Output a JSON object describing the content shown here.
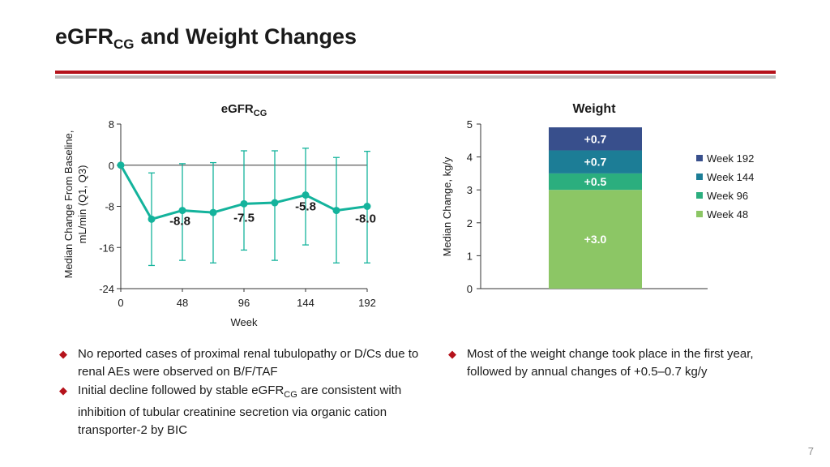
{
  "slide": {
    "title_main": "eGFR",
    "title_sub": "CG",
    "title_rest": "and Weight Changes",
    "page_number": "7"
  },
  "egfr_chart": {
    "title_main": "eGFR",
    "title_sub": "CG",
    "ylabel_line1": "Median Change From Baseline,",
    "ylabel_line2": "mL/min (Q1, Q3)",
    "xlabel": "Week"
  },
  "weight_chart": {
    "title": "Weight",
    "ylabel": "Median Change, kg/y"
  },
  "bullets_left": [
    {
      "text": "No reported cases of proximal renal tubulopathy or D/Cs due to renal AEs were observed on B/F/TAF"
    },
    {
      "pre": "Initial decline followed by stable eGFR",
      "sub": "CG",
      "post": " are consistent with inhibition of tubular creatinine secretion via organic cation transporter-2 by BIC"
    }
  ],
  "bullets_right": [
    {
      "text": "Most of the weight change took place in the first year, followed by annual changes of +0.5–0.7 kg/y"
    }
  ],
  "chart_data": [
    {
      "type": "line",
      "title": "eGFRCG",
      "xlabel": "Week",
      "ylabel": "Median Change From Baseline, mL/min (Q1, Q3)",
      "xlim": [
        0,
        192
      ],
      "ylim": [
        -24,
        8
      ],
      "xticks": [
        0,
        48,
        96,
        144,
        192
      ],
      "yticks": [
        8,
        0,
        -8,
        -16,
        -24
      ],
      "color": "#14b39c",
      "x": [
        0,
        24,
        48,
        72,
        96,
        120,
        144,
        168,
        192
      ],
      "y": [
        0,
        -10.5,
        -8.8,
        -9.2,
        -7.5,
        -7.3,
        -5.8,
        -8.8,
        -8.0
      ],
      "q1": [
        0,
        -19.5,
        -18.5,
        -19.0,
        -16.5,
        -18.5,
        -15.5,
        -19.0,
        -19.0
      ],
      "q3": [
        0,
        -1.5,
        0.3,
        0.5,
        2.8,
        2.8,
        3.3,
        1.5,
        2.7
      ],
      "data_labels": [
        {
          "x": 48,
          "y": -8.8,
          "text": "-8.8"
        },
        {
          "x": 96,
          "y": -7.5,
          "text": "-7.5"
        },
        {
          "x": 144,
          "y": -5.8,
          "text": "-5.8"
        },
        {
          "x": 192,
          "y": -8.0,
          "text": "-8.0"
        }
      ]
    },
    {
      "type": "bar",
      "stacked": true,
      "title": "Weight",
      "ylabel": "Median Change, kg/y",
      "ylim": [
        0,
        5
      ],
      "yticks": [
        0,
        1,
        2,
        3,
        4,
        5
      ],
      "legend_position": "right",
      "series": [
        {
          "name": "Week 48",
          "value": 3.0,
          "label": "+3.0",
          "color": "#8cc665"
        },
        {
          "name": "Week 96",
          "value": 0.5,
          "label": "+0.5",
          "color": "#2bae7e"
        },
        {
          "name": "Week 144",
          "value": 0.7,
          "label": "+0.7",
          "color": "#1c7d96"
        },
        {
          "name": "Week 192",
          "value": 0.7,
          "label": "+0.7",
          "color": "#384f8c"
        }
      ],
      "legend_order": [
        "Week 192",
        "Week 144",
        "Week 96",
        "Week 48"
      ]
    }
  ]
}
